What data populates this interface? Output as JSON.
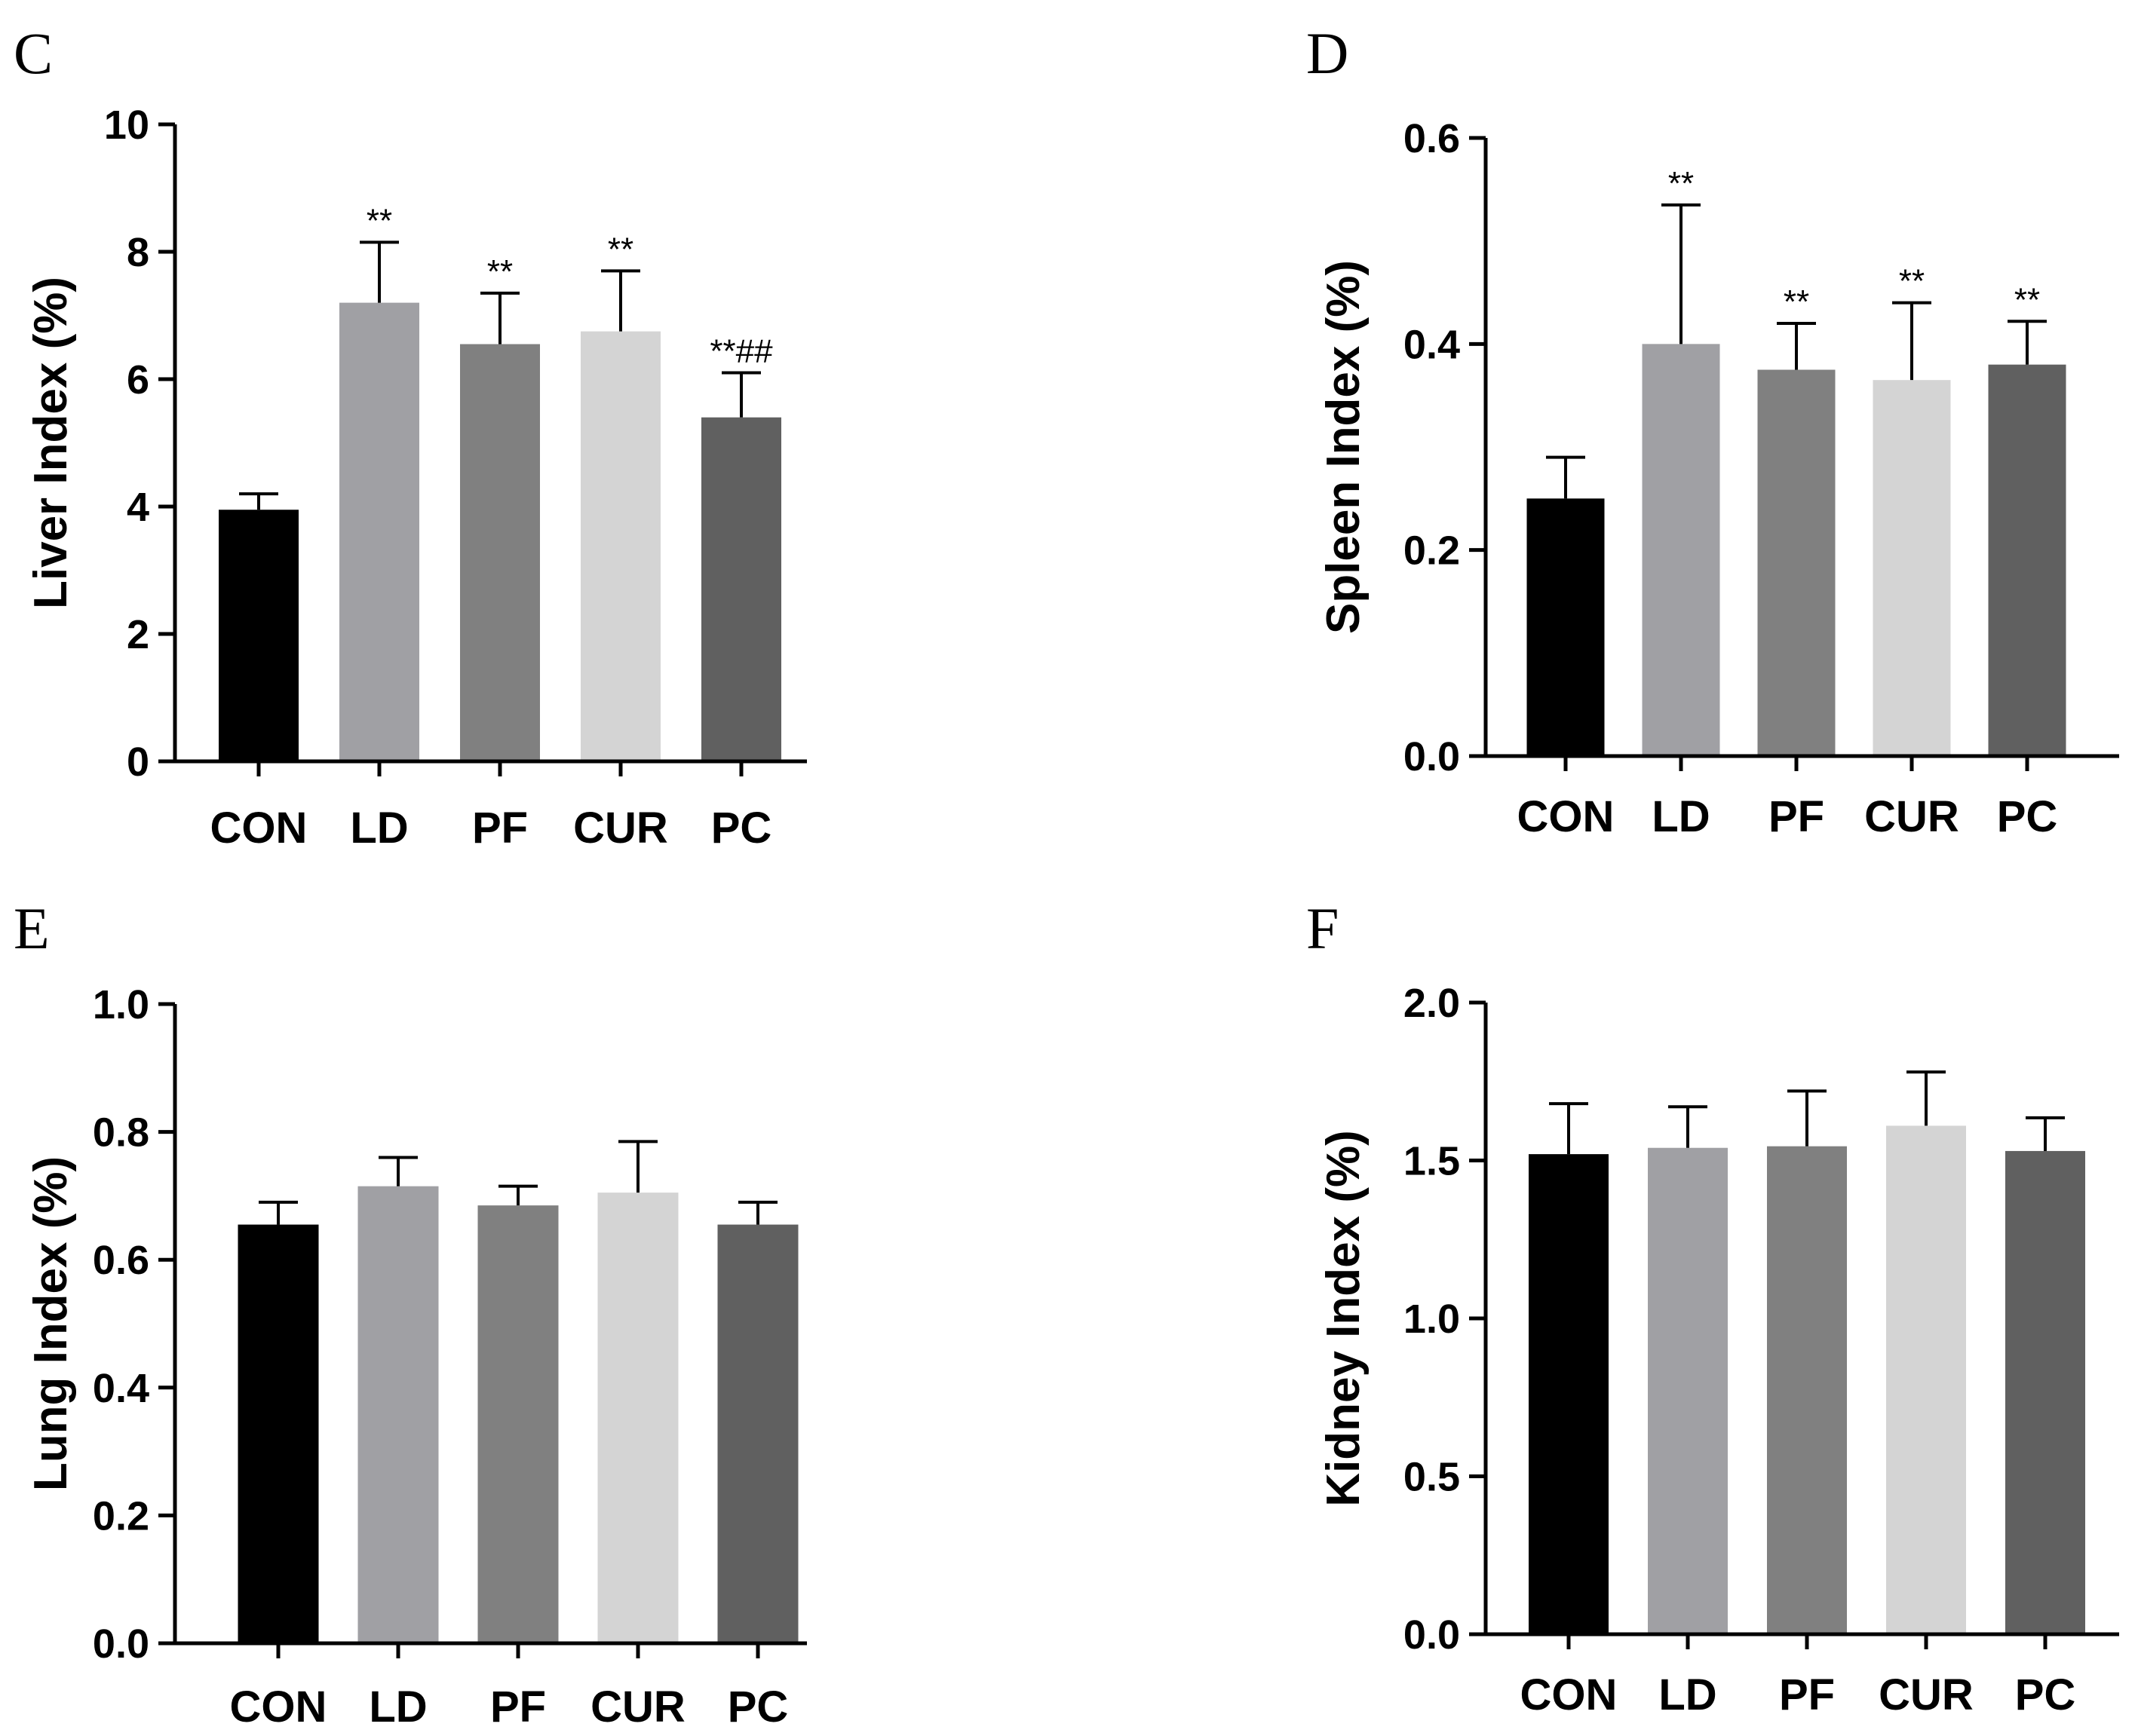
{
  "chart_data": [
    {
      "panel": "C",
      "type": "bar",
      "ylabel": "Liver Index (%)",
      "ylim": [
        0,
        10
      ],
      "yticks": [
        "0",
        "2",
        "4",
        "6",
        "8",
        "10"
      ],
      "categories": [
        "CON",
        "LD",
        "PF",
        "CUR",
        "PC"
      ],
      "values": [
        3.95,
        7.2,
        6.55,
        6.75,
        5.4
      ],
      "errors": [
        0.25,
        0.95,
        0.8,
        0.95,
        0.7
      ],
      "annotations": [
        "",
        "**",
        "**",
        "**",
        "**##"
      ],
      "colors": [
        "#000000",
        "#a0a0a4",
        "#808080",
        "#d4d4d4",
        "#606060"
      ]
    },
    {
      "panel": "D",
      "type": "bar",
      "ylabel": "Spleen Index (%)",
      "ylim": [
        0,
        0.6
      ],
      "yticks": [
        "0.0",
        "0.2",
        "0.4",
        "0.6"
      ],
      "categories": [
        "CON",
        "LD",
        "PF",
        "CUR",
        "PC"
      ],
      "values": [
        0.25,
        0.4,
        0.375,
        0.365,
        0.38
      ],
      "errors": [
        0.04,
        0.135,
        0.045,
        0.075,
        0.042
      ],
      "annotations": [
        "",
        "**",
        "**",
        "**",
        "**"
      ],
      "colors": [
        "#000000",
        "#a0a0a4",
        "#808080",
        "#d4d4d4",
        "#606060"
      ]
    },
    {
      "panel": "E",
      "type": "bar",
      "ylabel": "Lung Index (%)",
      "ylim": [
        0,
        1.0
      ],
      "yticks": [
        "0.0",
        "0.2",
        "0.4",
        "0.6",
        "0.8",
        "1.0"
      ],
      "categories": [
        "CON",
        "LD",
        "PF",
        "CUR",
        "PC"
      ],
      "values": [
        0.655,
        0.715,
        0.685,
        0.705,
        0.655
      ],
      "errors": [
        0.035,
        0.045,
        0.03,
        0.08,
        0.035
      ],
      "annotations": [
        "",
        "",
        "",
        "",
        ""
      ],
      "colors": [
        "#000000",
        "#a0a0a4",
        "#808080",
        "#d4d4d4",
        "#606060"
      ]
    },
    {
      "panel": "F",
      "type": "bar",
      "ylabel": "Kidney Index (%)",
      "ylim": [
        0,
        2.0
      ],
      "yticks": [
        "0.0",
        "0.5",
        "1.0",
        "1.5",
        "2.0"
      ],
      "categories": [
        "CON",
        "LD",
        "PF",
        "CUR",
        "PC"
      ],
      "values": [
        1.52,
        1.54,
        1.545,
        1.61,
        1.53
      ],
      "errors": [
        0.16,
        0.13,
        0.175,
        0.17,
        0.105
      ],
      "annotations": [
        "",
        "",
        "",
        "",
        ""
      ],
      "colors": [
        "#000000",
        "#a0a0a4",
        "#808080",
        "#d4d4d4",
        "#606060"
      ]
    }
  ]
}
